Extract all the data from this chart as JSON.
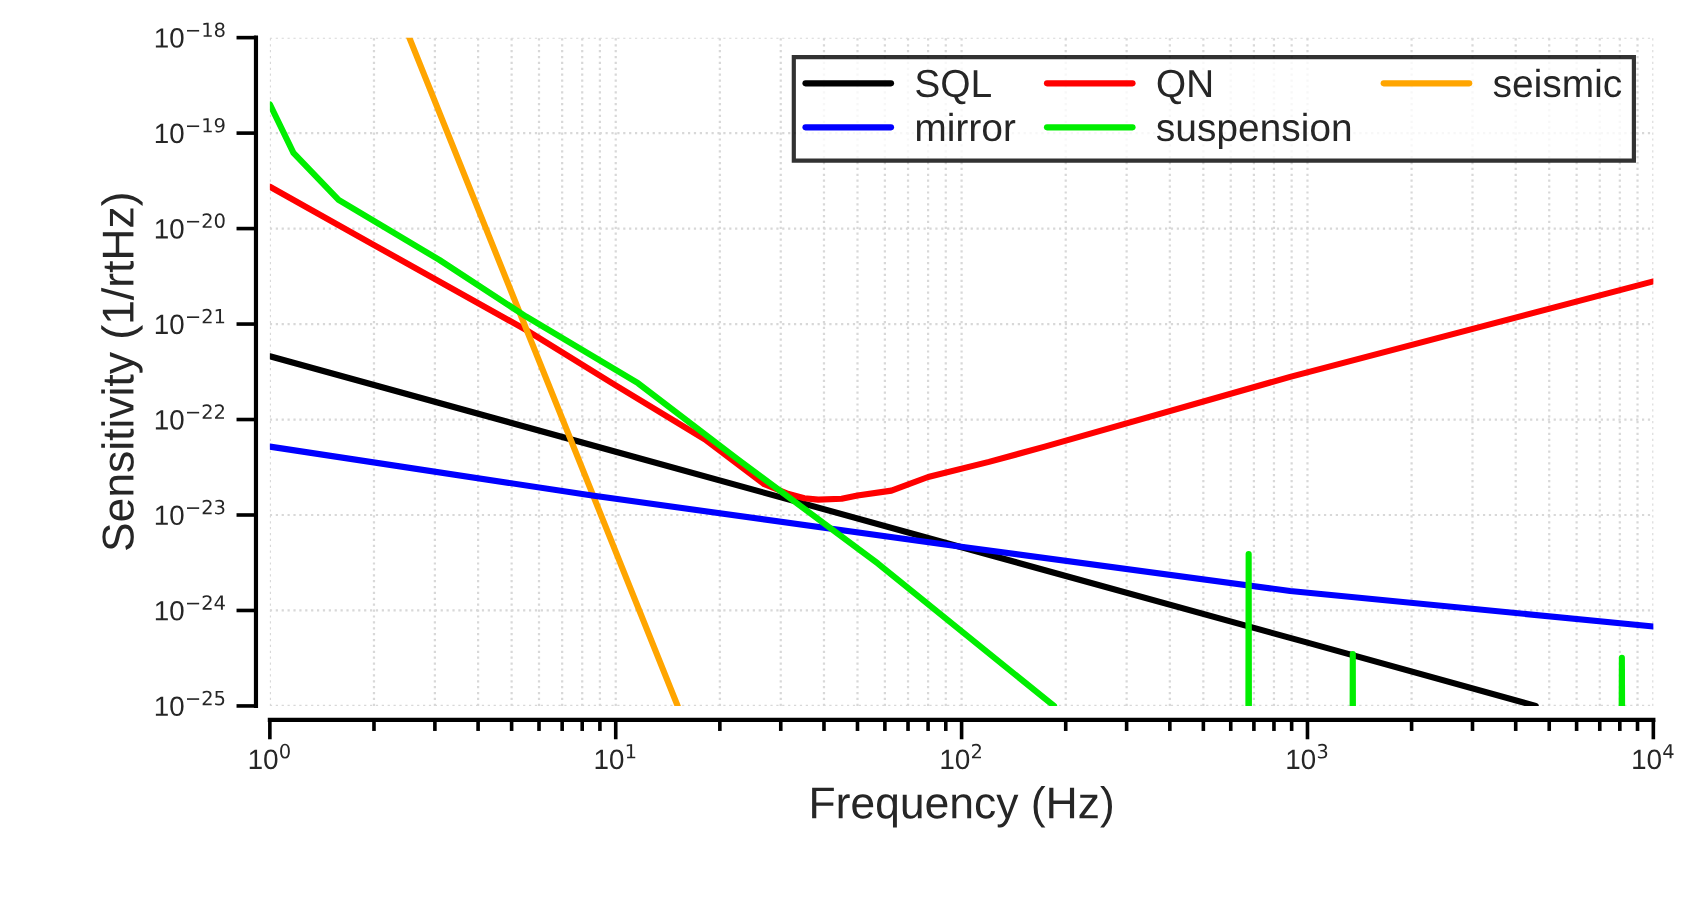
{
  "chart_data": {
    "type": "line",
    "xlabel": "Frequency (Hz)",
    "ylabel": "Sensitivity (1/rtHz)",
    "log": "xy",
    "grid": true,
    "legend": "top right",
    "xlim": [
      1,
      10000
    ],
    "xticks": [
      {
        "value": 1,
        "label": "10$^{0}$"
      },
      {
        "value": 10,
        "label": "10$^{1}$"
      },
      {
        "value": 100,
        "label": "10$^{2}$"
      },
      {
        "value": 1000,
        "label": "10$^{3}$"
      },
      {
        "value": 10000,
        "label": "10$^{4}$"
      }
    ],
    "ylim": [
      1e-25,
      1e-18
    ],
    "yticks": [
      {
        "value": 1e-25,
        "label": "10$^{−25}$"
      },
      {
        "value": 1e-24,
        "label": "10$^{−24}$"
      },
      {
        "value": 1e-23,
        "label": "10$^{−23}$"
      },
      {
        "value": 1e-22,
        "label": "10$^{−22}$"
      },
      {
        "value": 1e-21,
        "label": "10$^{−21}$"
      },
      {
        "value": 1e-20,
        "label": "10$^{−20}$"
      },
      {
        "value": 1e-19,
        "label": "10$^{−19}$"
      },
      {
        "value": 1e-18,
        "label": "10$^{−18}$"
      }
    ],
    "series": [
      {
        "name": "SQL",
        "color": "#000000",
        "x": [
          1,
          10,
          100,
          1000,
          4570
        ],
        "values": [
          4.6e-22,
          4.6e-23,
          4.6e-24,
          4.6e-25,
          1e-25
        ]
      },
      {
        "name": "QN",
        "color": "#ff0000",
        "x": [
          1,
          1.99,
          5.5,
          9.77,
          18.1,
          26.9,
          31.6,
          35.1,
          38.5,
          45,
          50,
          62.7,
          80,
          120,
          174,
          891,
          10000
        ],
        "values": [
          2.75e-20,
          6.8e-21,
          8.7e-22,
          2.4e-22,
          6.2e-23,
          2.1e-23,
          1.66e-23,
          1.5e-23,
          1.45e-23,
          1.48e-23,
          1.6e-23,
          1.8e-23,
          2.5e-23,
          3.6e-23,
          5.2e-23,
          2.8e-22,
          2.8e-21
        ]
      },
      {
        "name": "seismic",
        "color": "#ffa500",
        "x": [
          2.53,
          15.1
        ],
        "values": [
          1e-18,
          1e-25
        ]
      },
      {
        "name": "mirror",
        "color": "#0000ff",
        "x": [
          1,
          8.55,
          97.3,
          891,
          10000
        ],
        "values": [
          5.2e-23,
          1.6e-23,
          4.7e-24,
          1.6e-24,
          6.8e-25
        ]
      },
      {
        "name": "suspension",
        "color": "#00ee00",
        "x": [
          1,
          1.17,
          1.58,
          3.09,
          5.5,
          11.6,
          22.6,
          57.3,
          185,
          400,
          675,
          676,
          677,
          1000,
          1351,
          1352,
          1353,
          3000,
          8100,
          8110,
          8120
        ],
        "values": [
          2e-19,
          6.2e-20,
          2e-20,
          4.7e-21,
          1.2e-21,
          2.4e-22,
          3.8e-23,
          3.1e-24,
          1e-25,
          null,
          1e-25,
          3.9e-24,
          1e-25,
          null,
          1e-25,
          3.5e-25,
          1e-25,
          null,
          1e-25,
          3.2e-25,
          1e-25
        ]
      }
    ]
  }
}
